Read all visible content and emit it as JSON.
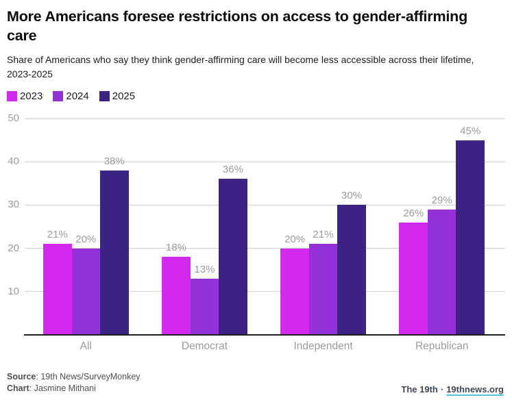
{
  "header": {
    "title": "More Americans foresee restrictions on access to gender-affirming care",
    "subtitle": "Share of Americans who say they think gender-affirming care will become less accessible across their lifetime, 2023-2025"
  },
  "chart_data": {
    "type": "bar",
    "categories": [
      "All",
      "Democrat",
      "Independent",
      "Republican"
    ],
    "series": [
      {
        "name": "2023",
        "color": "#d328f0",
        "values": [
          21,
          18,
          20,
          26
        ]
      },
      {
        "name": "2024",
        "color": "#9430d8",
        "values": [
          20,
          13,
          21,
          29
        ]
      },
      {
        "name": "2025",
        "color": "#3b2383",
        "values": [
          38,
          36,
          30,
          45
        ]
      }
    ],
    "value_suffix": "%",
    "ylim": [
      0,
      50
    ],
    "yticks": [
      10,
      20,
      30,
      40,
      50
    ],
    "grid": true,
    "legend_position": "top-left",
    "label_color": "#9b9b9e",
    "gridline_color": "#cfcfcf",
    "axis_line_color": "#1f1f1f"
  },
  "footer": {
    "source_label": "Source",
    "source_value": ": 19th News/SurveyMonkey",
    "chart_label": "Chart",
    "chart_value": ": Jasmine Mithani",
    "brand_name": "The 19th",
    "brand_sep": "·",
    "brand_link": "19thnews.org",
    "brand_underline_color": "#51c5d9"
  }
}
